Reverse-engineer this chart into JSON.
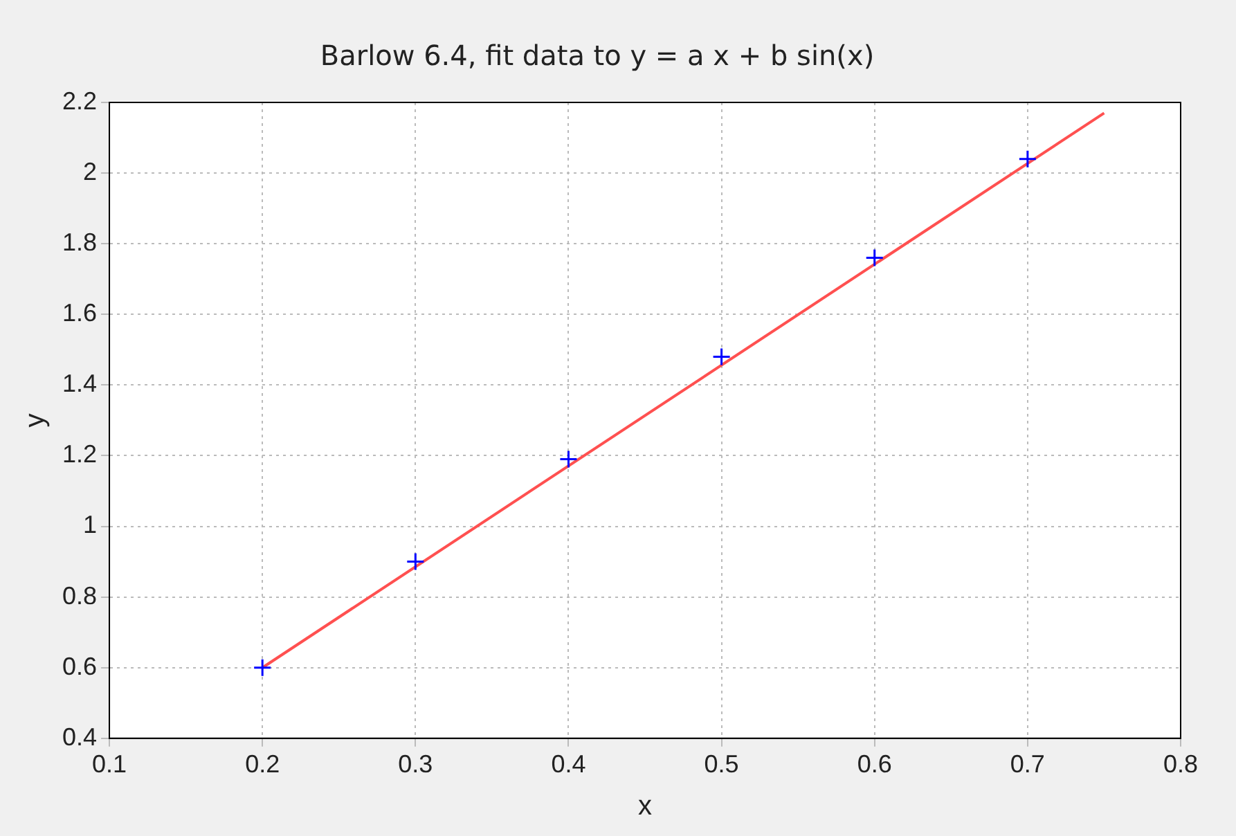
{
  "chart_data": {
    "type": "scatter",
    "title": "Barlow 6.4, fit data to y = a x + b sin(x)",
    "xlabel": "x",
    "ylabel": "y",
    "series": [
      {
        "marker": "cross",
        "color": "#0000ff",
        "x": [
          0.2,
          0.3,
          0.4,
          0.5,
          0.6,
          0.7
        ],
        "values": [
          0.6,
          0.9,
          1.19,
          1.48,
          1.76,
          2.04
        ]
      },
      {
        "type": "line",
        "marker": "none",
        "color": "#ff5050",
        "x": [
          0.2,
          0.75
        ],
        "values": [
          0.6,
          2.17
        ]
      }
    ],
    "xlim": [
      0.1,
      0.8
    ],
    "xticks": [
      0.1,
      0.2,
      0.3,
      0.4,
      0.5,
      0.6,
      0.7,
      0.8
    ],
    "ylim": [
      0.4,
      2.2
    ],
    "yticks": [
      0.4,
      0.6,
      0.8,
      1,
      1.2,
      1.4,
      1.6,
      1.8,
      2,
      2.2
    ],
    "grid": true,
    "legend": false
  }
}
